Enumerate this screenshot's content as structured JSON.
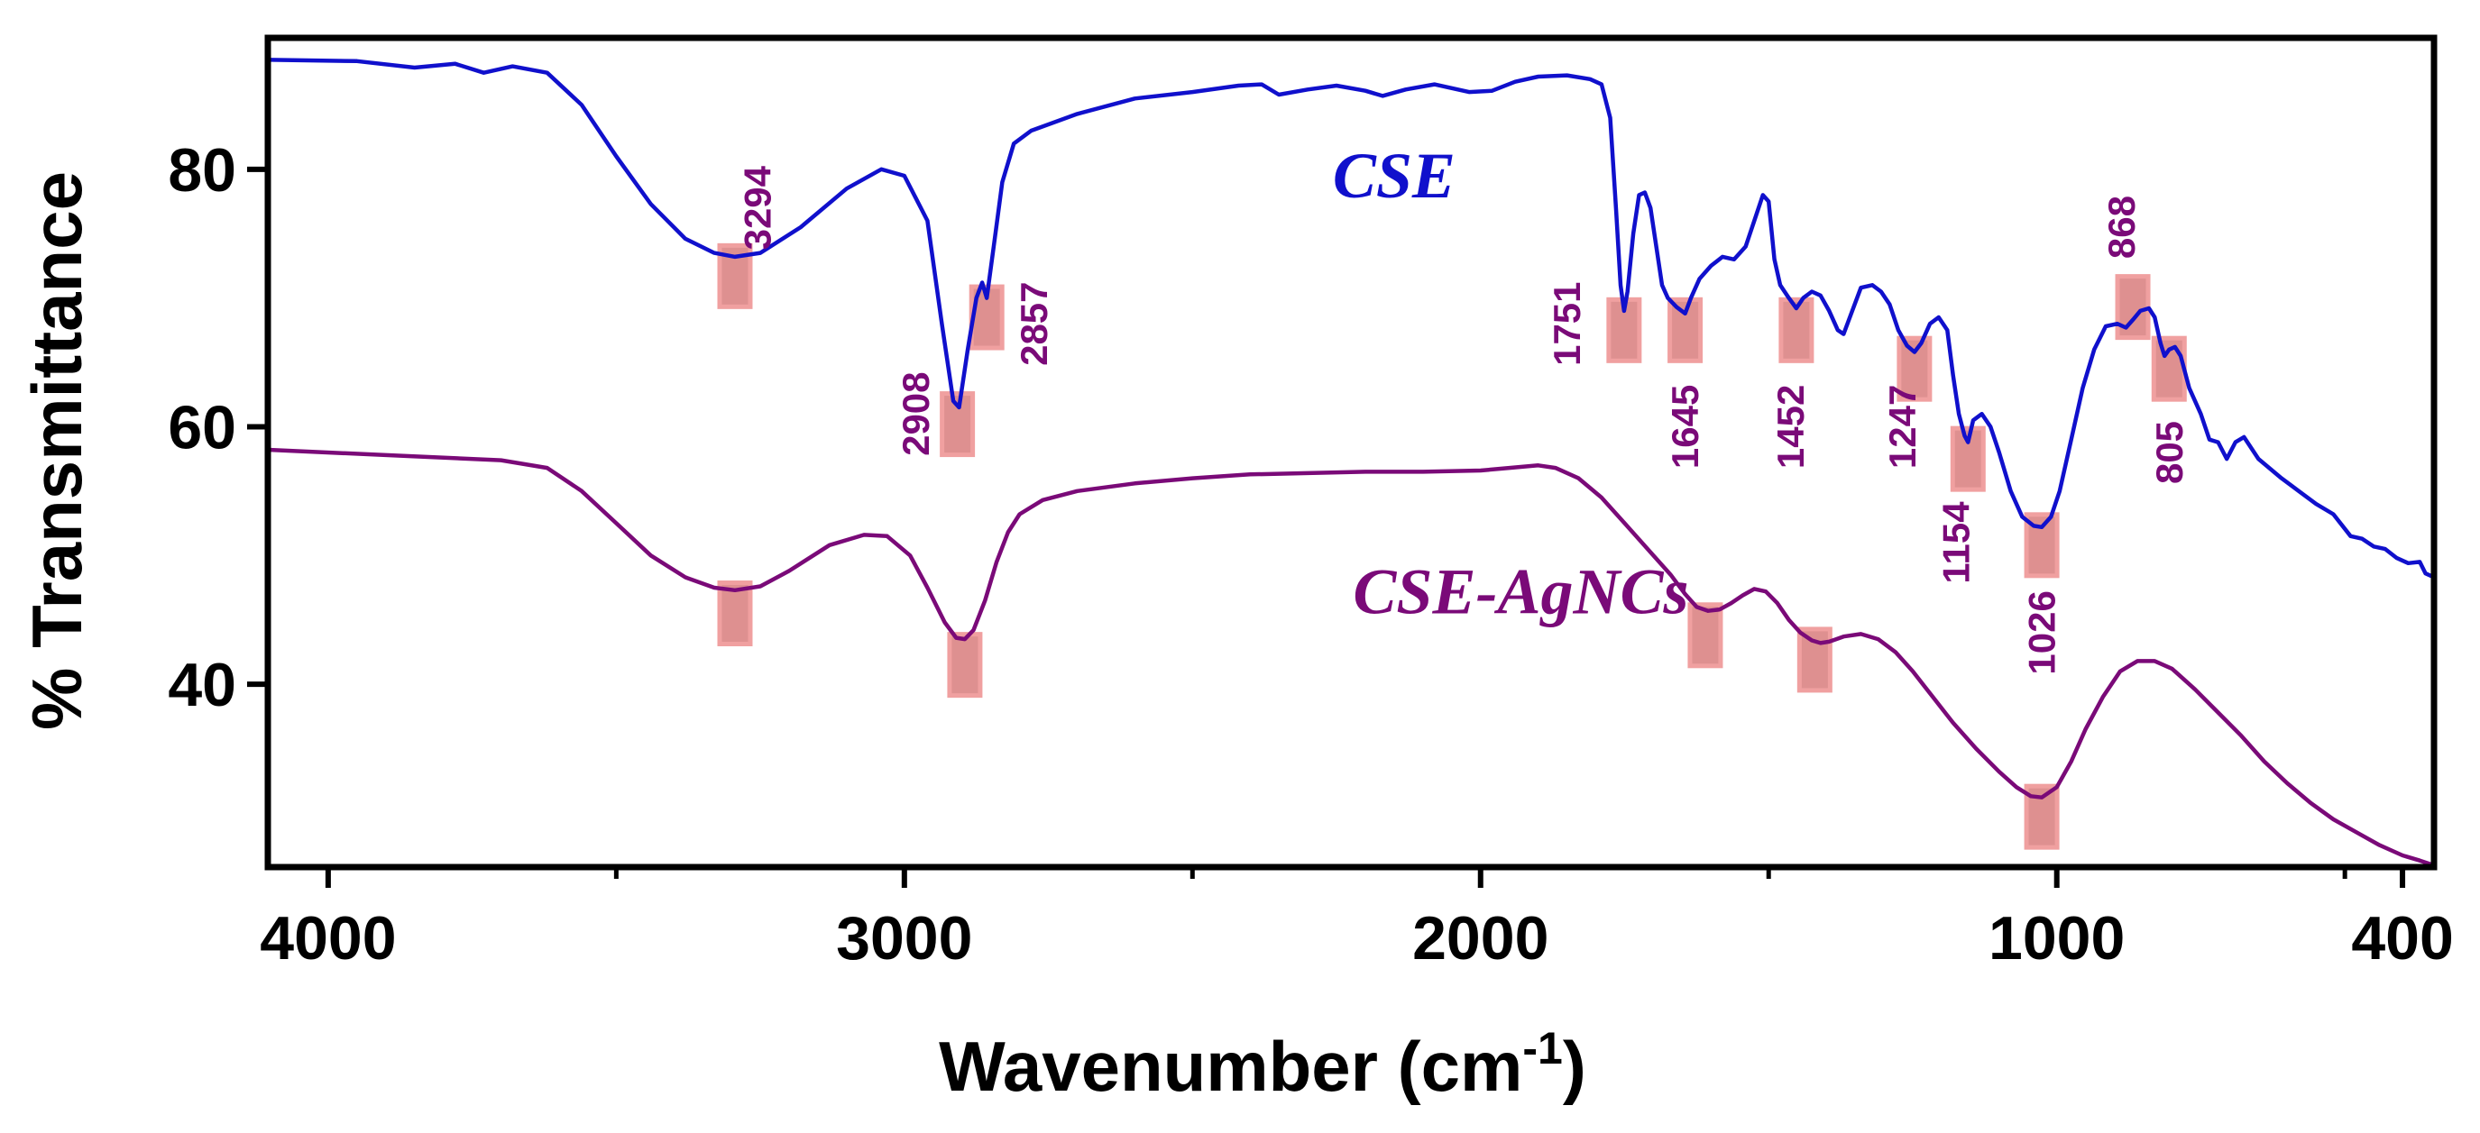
{
  "chart_data": {
    "type": "line",
    "title": "",
    "xlabel": "Wavenumber (cm",
    "xlabel_superscript": "-1",
    "xlabel_close": ")",
    "ylabel": "% Transmittance",
    "xlim": [
      4100,
      350
    ],
    "ylim": [
      26,
      90
    ],
    "x_reversed": true,
    "grid": false,
    "xticks": [
      {
        "value": 4000,
        "label": "4000"
      },
      {
        "value": 3000,
        "label": "3000"
      },
      {
        "value": 2000,
        "label": "2000"
      },
      {
        "value": 1000,
        "label": "1000"
      },
      {
        "value": 400,
        "label": "400"
      }
    ],
    "xticks_minor": [
      3500,
      2500,
      1500,
      500
    ],
    "yticks": [
      {
        "value": 40,
        "label": "40"
      },
      {
        "value": 60,
        "label": "60"
      },
      {
        "value": 80,
        "label": "80"
      }
    ],
    "series": [
      {
        "name": "CSE",
        "color": "#1010cc",
        "label_position": {
          "x": 2150,
          "y": 77.8
        },
        "points": [
          [
            4100,
            88.5
          ],
          [
            3950,
            88.4
          ],
          [
            3850,
            87.9
          ],
          [
            3780,
            88.2
          ],
          [
            3730,
            87.5
          ],
          [
            3680,
            88
          ],
          [
            3620,
            87.5
          ],
          [
            3560,
            85
          ],
          [
            3500,
            81
          ],
          [
            3440,
            77.3
          ],
          [
            3380,
            74.6
          ],
          [
            3330,
            73.5
          ],
          [
            3294,
            73.2
          ],
          [
            3250,
            73.5
          ],
          [
            3180,
            75.5
          ],
          [
            3100,
            78.5
          ],
          [
            3040,
            80
          ],
          [
            3000,
            79.5
          ],
          [
            2960,
            76
          ],
          [
            2935,
            68
          ],
          [
            2915,
            62
          ],
          [
            2905,
            61.5
          ],
          [
            2890,
            66
          ],
          [
            2875,
            70
          ],
          [
            2865,
            71.2
          ],
          [
            2857,
            70
          ],
          [
            2845,
            74
          ],
          [
            2830,
            79
          ],
          [
            2810,
            82
          ],
          [
            2780,
            83
          ],
          [
            2700,
            84.3
          ],
          [
            2600,
            85.5
          ],
          [
            2500,
            86
          ],
          [
            2420,
            86.5
          ],
          [
            2380,
            86.6
          ],
          [
            2350,
            85.8
          ],
          [
            2300,
            86.2
          ],
          [
            2250,
            86.5
          ],
          [
            2200,
            86.1
          ],
          [
            2170,
            85.7
          ],
          [
            2130,
            86.2
          ],
          [
            2080,
            86.6
          ],
          [
            2050,
            86.3
          ],
          [
            2020,
            86
          ],
          [
            1980,
            86.1
          ],
          [
            1940,
            86.8
          ],
          [
            1900,
            87.2
          ],
          [
            1850,
            87.3
          ],
          [
            1810,
            87
          ],
          [
            1790,
            86.6
          ],
          [
            1775,
            84
          ],
          [
            1765,
            77
          ],
          [
            1757,
            71
          ],
          [
            1751,
            69
          ],
          [
            1745,
            70.5
          ],
          [
            1735,
            75
          ],
          [
            1725,
            78
          ],
          [
            1715,
            78.2
          ],
          [
            1705,
            77
          ],
          [
            1695,
            74
          ],
          [
            1685,
            71
          ],
          [
            1675,
            70
          ],
          [
            1660,
            69.3
          ],
          [
            1645,
            68.8
          ],
          [
            1635,
            70
          ],
          [
            1620,
            71.5
          ],
          [
            1600,
            72.5
          ],
          [
            1580,
            73.2
          ],
          [
            1560,
            73
          ],
          [
            1540,
            74
          ],
          [
            1525,
            76
          ],
          [
            1510,
            78
          ],
          [
            1500,
            77.5
          ],
          [
            1490,
            73
          ],
          [
            1480,
            71
          ],
          [
            1465,
            70
          ],
          [
            1452,
            69.2
          ],
          [
            1440,
            70
          ],
          [
            1425,
            70.5
          ],
          [
            1410,
            70.2
          ],
          [
            1395,
            69
          ],
          [
            1380,
            67.5
          ],
          [
            1370,
            67.2
          ],
          [
            1355,
            69
          ],
          [
            1340,
            70.8
          ],
          [
            1320,
            71
          ],
          [
            1305,
            70.5
          ],
          [
            1290,
            69.5
          ],
          [
            1275,
            67.5
          ],
          [
            1260,
            66.3
          ],
          [
            1247,
            65.8
          ],
          [
            1235,
            66.5
          ],
          [
            1220,
            68
          ],
          [
            1205,
            68.5
          ],
          [
            1190,
            67.5
          ],
          [
            1180,
            64
          ],
          [
            1170,
            61
          ],
          [
            1160,
            59.3
          ],
          [
            1154,
            58.8
          ],
          [
            1145,
            60.5
          ],
          [
            1130,
            61
          ],
          [
            1115,
            60
          ],
          [
            1100,
            58
          ],
          [
            1080,
            55
          ],
          [
            1060,
            53
          ],
          [
            1040,
            52.3
          ],
          [
            1026,
            52.2
          ],
          [
            1010,
            53
          ],
          [
            995,
            55
          ],
          [
            975,
            59
          ],
          [
            955,
            63
          ],
          [
            935,
            66
          ],
          [
            915,
            67.8
          ],
          [
            895,
            68
          ],
          [
            880,
            67.7
          ],
          [
            868,
            68.3
          ],
          [
            855,
            69
          ],
          [
            840,
            69.2
          ],
          [
            830,
            68.5
          ],
          [
            820,
            66.5
          ],
          [
            813,
            65.5
          ],
          [
            805,
            66
          ],
          [
            795,
            66.2
          ],
          [
            785,
            65.5
          ],
          [
            770,
            63
          ],
          [
            750,
            61
          ],
          [
            735,
            59
          ],
          [
            720,
            58.8
          ],
          [
            705,
            57.5
          ],
          [
            690,
            58.8
          ],
          [
            675,
            59.2
          ],
          [
            650,
            57.5
          ],
          [
            610,
            56
          ],
          [
            580,
            55
          ],
          [
            550,
            54
          ],
          [
            520,
            53.2
          ],
          [
            490,
            51.5
          ],
          [
            470,
            51.3
          ],
          [
            450,
            50.7
          ],
          [
            430,
            50.5
          ],
          [
            410,
            49.8
          ],
          [
            390,
            49.4
          ],
          [
            370,
            49.5
          ],
          [
            360,
            48.6
          ],
          [
            350,
            48.4
          ]
        ]
      },
      {
        "name": "CSE-AgNCs",
        "color": "#7a0a78",
        "label_position": {
          "x": 1930,
          "y": 45.5
        },
        "points": [
          [
            4100,
            58.2
          ],
          [
            3900,
            57.8
          ],
          [
            3700,
            57.4
          ],
          [
            3620,
            56.8
          ],
          [
            3560,
            55
          ],
          [
            3500,
            52.5
          ],
          [
            3440,
            50
          ],
          [
            3380,
            48.3
          ],
          [
            3330,
            47.5
          ],
          [
            3294,
            47.3
          ],
          [
            3250,
            47.6
          ],
          [
            3200,
            48.8
          ],
          [
            3130,
            50.8
          ],
          [
            3070,
            51.6
          ],
          [
            3030,
            51.5
          ],
          [
            2990,
            50
          ],
          [
            2960,
            47.5
          ],
          [
            2930,
            44.8
          ],
          [
            2910,
            43.6
          ],
          [
            2895,
            43.5
          ],
          [
            2880,
            44.2
          ],
          [
            2860,
            46.5
          ],
          [
            2840,
            49.5
          ],
          [
            2820,
            51.8
          ],
          [
            2800,
            53.2
          ],
          [
            2760,
            54.3
          ],
          [
            2700,
            55
          ],
          [
            2600,
            55.6
          ],
          [
            2500,
            56
          ],
          [
            2400,
            56.3
          ],
          [
            2300,
            56.4
          ],
          [
            2200,
            56.5
          ],
          [
            2100,
            56.5
          ],
          [
            2000,
            56.6
          ],
          [
            1950,
            56.8
          ],
          [
            1900,
            57
          ],
          [
            1870,
            56.8
          ],
          [
            1830,
            56
          ],
          [
            1790,
            54.5
          ],
          [
            1750,
            52.5
          ],
          [
            1700,
            50
          ],
          [
            1670,
            48.5
          ],
          [
            1645,
            47
          ],
          [
            1625,
            46
          ],
          [
            1605,
            45.7
          ],
          [
            1585,
            45.8
          ],
          [
            1565,
            46.3
          ],
          [
            1545,
            46.9
          ],
          [
            1525,
            47.4
          ],
          [
            1505,
            47.2
          ],
          [
            1485,
            46.3
          ],
          [
            1465,
            45
          ],
          [
            1445,
            44
          ],
          [
            1425,
            43.4
          ],
          [
            1410,
            43.2
          ],
          [
            1395,
            43.3
          ],
          [
            1370,
            43.7
          ],
          [
            1340,
            43.9
          ],
          [
            1310,
            43.5
          ],
          [
            1280,
            42.5
          ],
          [
            1250,
            41
          ],
          [
            1215,
            39
          ],
          [
            1180,
            37
          ],
          [
            1140,
            35
          ],
          [
            1100,
            33.2
          ],
          [
            1070,
            32
          ],
          [
            1045,
            31.3
          ],
          [
            1026,
            31.2
          ],
          [
            1000,
            32
          ],
          [
            975,
            34
          ],
          [
            950,
            36.5
          ],
          [
            920,
            39
          ],
          [
            890,
            41
          ],
          [
            860,
            41.8
          ],
          [
            830,
            41.8
          ],
          [
            800,
            41.2
          ],
          [
            760,
            39.6
          ],
          [
            720,
            37.8
          ],
          [
            680,
            36
          ],
          [
            640,
            34
          ],
          [
            600,
            32.3
          ],
          [
            560,
            30.8
          ],
          [
            520,
            29.5
          ],
          [
            480,
            28.5
          ],
          [
            440,
            27.5
          ],
          [
            400,
            26.7
          ],
          [
            370,
            26.3
          ],
          [
            350,
            26
          ]
        ]
      }
    ],
    "peak_markers": [
      {
        "x": 3294,
        "y": 71.7
      },
      {
        "x": 2908,
        "y": 60.2
      },
      {
        "x": 2857,
        "y": 68.5
      },
      {
        "x": 1751,
        "y": 67.5
      },
      {
        "x": 1645,
        "y": 67.5
      },
      {
        "x": 1452,
        "y": 67.5
      },
      {
        "x": 1247,
        "y": 64.5
      },
      {
        "x": 1154,
        "y": 57.5
      },
      {
        "x": 1026,
        "y": 50.8
      },
      {
        "x": 868,
        "y": 69.3
      },
      {
        "x": 805,
        "y": 64.5
      },
      {
        "x": 3294,
        "y": 45.5
      },
      {
        "x": 2895,
        "y": 41.5
      },
      {
        "x": 1610,
        "y": 43.8
      },
      {
        "x": 1420,
        "y": 41.9
      },
      {
        "x": 1026,
        "y": 29.7
      }
    ],
    "peak_labels": [
      {
        "text": "3294",
        "x": 3255,
        "y": 77,
        "anchor": "middle"
      },
      {
        "text": "2908",
        "x": 2980,
        "y": 61,
        "anchor": "middle"
      },
      {
        "text": "2857",
        "x": 2775,
        "y": 68,
        "anchor": "middle"
      },
      {
        "text": "1751",
        "x": 1850,
        "y": 68,
        "anchor": "middle"
      },
      {
        "text": "1645",
        "x": 1645,
        "y": 60,
        "anchor": "middle"
      },
      {
        "text": "1452",
        "x": 1462,
        "y": 60,
        "anchor": "middle"
      },
      {
        "text": "1247",
        "x": 1268,
        "y": 60,
        "anchor": "middle"
      },
      {
        "text": "1154",
        "x": 1175,
        "y": 51,
        "anchor": "middle"
      },
      {
        "text": "1026",
        "x": 1026,
        "y": 44,
        "anchor": "middle"
      },
      {
        "text": "868",
        "x": 888,
        "y": 75.5,
        "anchor": "middle"
      },
      {
        "text": "805",
        "x": 805,
        "y": 58,
        "anchor": "middle"
      }
    ],
    "peak_label_color": "#7a0a78",
    "marker_fill": "#d87c7c",
    "marker_stroke": "#f0a0a0"
  }
}
